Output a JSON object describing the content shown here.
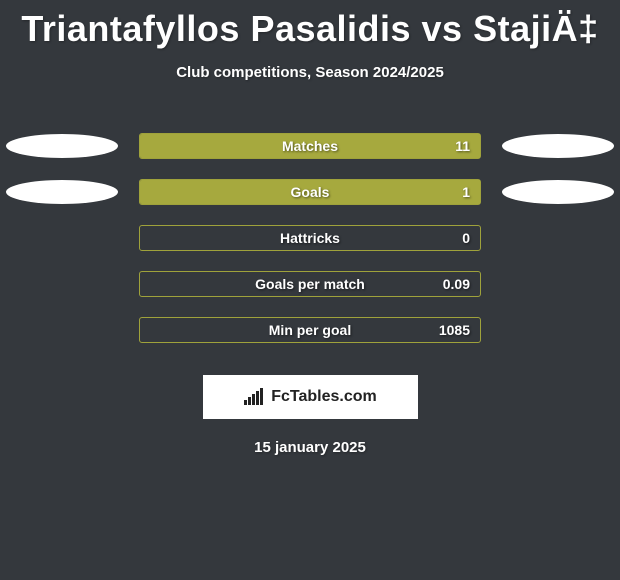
{
  "title": "Triantafyllos Pasalidis vs StajiÄ‡",
  "subtitle": "Club competitions, Season 2024/2025",
  "date": "15 january 2025",
  "brand": "FcTables.com",
  "background_color": "#34383d",
  "bar_fill_color": "#a6a93e",
  "bar_border_color": "#9fa23b",
  "ellipse_color": "#ffffff",
  "bar_container_width": 342,
  "rows": [
    {
      "label": "Matches",
      "value": "11",
      "fill_pct": 100,
      "ellipse_left": true,
      "ellipse_right": true
    },
    {
      "label": "Goals",
      "value": "1",
      "fill_pct": 100,
      "ellipse_left": true,
      "ellipse_right": true
    },
    {
      "label": "Hattricks",
      "value": "0",
      "fill_pct": 0,
      "ellipse_left": false,
      "ellipse_right": false
    },
    {
      "label": "Goals per match",
      "value": "0.09",
      "fill_pct": 0,
      "ellipse_left": false,
      "ellipse_right": false
    },
    {
      "label": "Min per goal",
      "value": "1085",
      "fill_pct": 0,
      "ellipse_left": false,
      "ellipse_right": false
    }
  ]
}
